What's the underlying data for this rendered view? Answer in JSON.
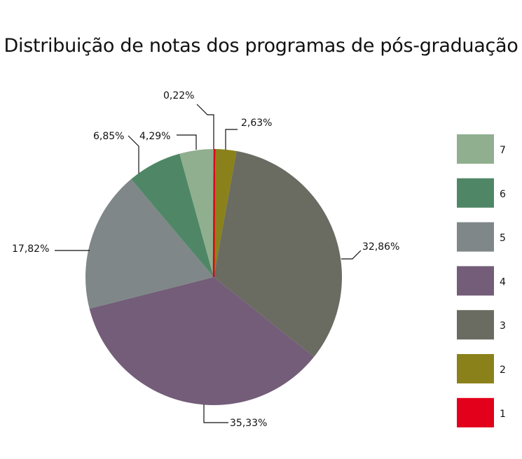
{
  "chart_data": {
    "type": "pie",
    "title": "Distribuição de notas dos programas de pós-graduação",
    "start": "top, clockwise",
    "slices": [
      {
        "category": "1",
        "value": 0.22,
        "label": "0,22%",
        "color": "#e2001a"
      },
      {
        "category": "2",
        "value": 2.63,
        "label": "2,63%",
        "color": "#8b811b"
      },
      {
        "category": "3",
        "value": 32.86,
        "label": "32,86%",
        "color": "#6a6b61"
      },
      {
        "category": "4",
        "value": 35.33,
        "label": "35,33%",
        "color": "#735d78"
      },
      {
        "category": "5",
        "value": 17.82,
        "label": "17,82%",
        "color": "#7f8788"
      },
      {
        "category": "6",
        "value": 6.85,
        "label": "6,85%",
        "color": "#4f8766"
      },
      {
        "category": "7",
        "value": 4.29,
        "label": "4,29%",
        "color": "#90af8f"
      }
    ],
    "legend": {
      "placement": "right",
      "order": [
        "7",
        "6",
        "5",
        "4",
        "3",
        "2",
        "1"
      ]
    }
  }
}
